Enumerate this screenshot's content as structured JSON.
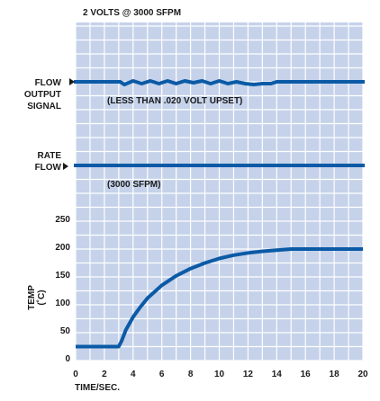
{
  "chart_data": {
    "type": "line",
    "title": "2 VOLTS @ 3000 SFPM",
    "xlabel": "TIME/SEC.",
    "ylabel": "TEMP (˚C)",
    "xlim": [
      0,
      20
    ],
    "ylim": [
      0,
      250
    ],
    "x_ticks": [
      "0",
      "2",
      "4",
      "6",
      "8",
      "10",
      "12",
      "14",
      "16",
      "18",
      "20"
    ],
    "y_ticks": [
      "0",
      "50",
      "100",
      "150",
      "200",
      "250"
    ],
    "grid": true,
    "background_color": "#c5d2ea",
    "grid_color": "#ffffff",
    "line_color": "#0b5aa6",
    "traces": {
      "flow_output": {
        "label_lines": [
          "FLOW",
          "OUTPUT",
          "SIGNAL"
        ],
        "annotation": "(LESS THAN .020 VOLT UPSET)"
      },
      "rate_flow": {
        "label_lines": [
          "RATE",
          "FLOW"
        ],
        "annotation": "(3000 SFPM)"
      }
    },
    "series": [
      {
        "values_x": [
          0,
          1,
          2,
          3,
          3.2,
          3.5,
          4,
          4.5,
          5,
          6,
          7,
          8,
          9,
          10,
          11,
          12,
          13,
          14,
          15,
          16,
          17,
          18,
          19,
          20
        ],
        "values_y": [
          25,
          25,
          25,
          25,
          35,
          55,
          78,
          96,
          112,
          135,
          152,
          165,
          175,
          183,
          189,
          193,
          196,
          198,
          200,
          200,
          200,
          200,
          200,
          200
        ]
      }
    ]
  }
}
